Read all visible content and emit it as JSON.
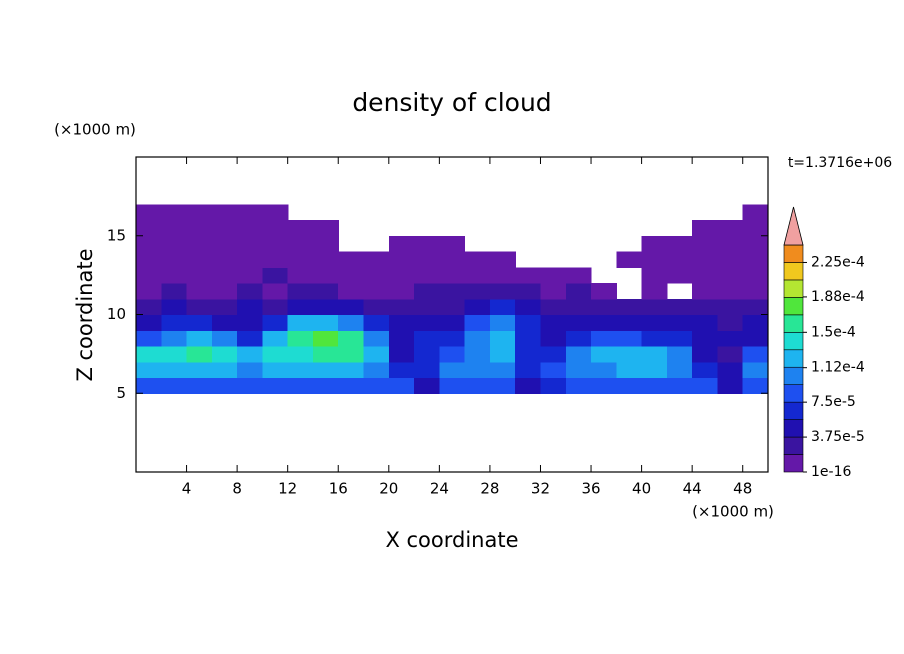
{
  "chart_data": {
    "type": "contour",
    "title": "density of cloud",
    "x_label": "X coordinate",
    "y_label": "Z coordinate",
    "x_unit": "(×1000 m)",
    "y_unit": "(×1000 m)",
    "time_label": "t=1.3716e+06",
    "xlim": [
      0,
      50
    ],
    "xticks": [
      4,
      8,
      12,
      16,
      20,
      24,
      28,
      32,
      36,
      40,
      44,
      48
    ],
    "ylim": [
      0,
      20
    ],
    "yticks": [
      5,
      10,
      15
    ],
    "x": [
      1,
      3,
      5,
      7,
      9,
      11,
      13,
      15,
      17,
      19,
      21,
      23,
      25,
      27,
      29,
      31,
      33,
      35,
      37,
      39,
      41,
      43,
      45,
      47,
      49
    ],
    "y": [
      5.5,
      6.5,
      7.5,
      8.5,
      9.5,
      10.5,
      11.5,
      12.5,
      13.5,
      14.5,
      15.5,
      16.5
    ],
    "z": [
      [
        8e-05,
        9e-05,
        9e-05,
        9e-05,
        9e-05,
        9e-05,
        9e-05,
        9e-05,
        9e-05,
        9e-05,
        8e-05,
        4.5e-05,
        8e-05,
        9e-05,
        8e-05,
        4.5e-05,
        6e-05,
        8e-05,
        8e-05,
        8e-05,
        8e-05,
        8e-05,
        8e-05,
        4.5e-05,
        8e-05
      ],
      [
        0.00012,
        0.00012,
        0.00012,
        0.00012,
        0.00011,
        0.00012,
        0.00012,
        0.00012,
        0.00012,
        0.00011,
        6e-05,
        6e-05,
        0.0001,
        0.0001,
        0.0001,
        6e-05,
        8e-05,
        0.0001,
        0.00011,
        0.00012,
        0.00012,
        0.00011,
        6e-05,
        4.5e-05,
        0.0001
      ],
      [
        0.00014,
        0.00015,
        0.00016,
        0.00015,
        0.00013,
        0.00014,
        0.00015,
        0.00016,
        0.00016,
        0.00013,
        4.5e-05,
        6e-05,
        8e-05,
        0.00011,
        0.00012,
        6e-05,
        6e-05,
        0.0001,
        0.00012,
        0.00013,
        0.00012,
        0.0001,
        4.5e-05,
        2.5e-05,
        8e-05
      ],
      [
        8e-05,
        0.00011,
        0.00012,
        0.0001,
        6e-05,
        0.00012,
        0.00016,
        0.00017,
        0.00016,
        0.00011,
        4.5e-05,
        6e-05,
        6e-05,
        0.0001,
        0.00012,
        6e-05,
        4.5e-05,
        6e-05,
        8e-05,
        8e-05,
        6e-05,
        6e-05,
        4.5e-05,
        4.5e-05,
        4.5e-05
      ],
      [
        4.5e-05,
        6e-05,
        6e-05,
        4.5e-05,
        4.5e-05,
        6e-05,
        0.00012,
        0.00013,
        0.0001,
        6e-05,
        4.5e-05,
        4.5e-05,
        4.5e-05,
        8e-05,
        0.0001,
        6e-05,
        4.5e-05,
        4.5e-05,
        4.5e-05,
        4.5e-05,
        4.5e-05,
        4.5e-05,
        4.5e-05,
        2.5e-05,
        4.5e-05
      ],
      [
        2.5e-05,
        4.5e-05,
        2.5e-05,
        2.5e-05,
        4.5e-05,
        2.5e-05,
        4.5e-05,
        4.5e-05,
        4.5e-05,
        2.5e-05,
        2.5e-05,
        2.5e-05,
        2.5e-05,
        4.5e-05,
        6e-05,
        4.5e-05,
        2.5e-05,
        2.5e-05,
        2.5e-05,
        2.5e-05,
        2.5e-05,
        2.5e-05,
        2.5e-05,
        2.5e-05,
        2.5e-05
      ],
      [
        1e-06,
        2.5e-05,
        1e-06,
        1e-06,
        2.5e-05,
        1e-06,
        2.5e-05,
        2.5e-05,
        1e-06,
        1e-06,
        1e-06,
        2.5e-05,
        2.5e-05,
        2.5e-05,
        2.5e-05,
        2.5e-05,
        1e-06,
        2.5e-05,
        1e-06,
        null,
        1e-06,
        null,
        1e-06,
        1e-06,
        1e-06
      ],
      [
        1e-06,
        1e-06,
        1e-06,
        1e-06,
        1e-06,
        2.5e-05,
        1e-06,
        1e-06,
        1e-06,
        1e-06,
        1e-06,
        1e-06,
        1e-06,
        1e-06,
        1e-06,
        1e-06,
        1e-06,
        1e-06,
        null,
        null,
        1e-06,
        1e-06,
        1e-06,
        1e-06,
        1e-06
      ],
      [
        1e-06,
        1e-06,
        1e-06,
        1e-06,
        1e-06,
        1e-06,
        1e-06,
        1e-06,
        1e-06,
        1e-06,
        1e-06,
        1e-06,
        1e-06,
        1e-06,
        1e-06,
        null,
        null,
        null,
        null,
        1e-06,
        1e-06,
        1e-06,
        1e-06,
        1e-06,
        1e-06
      ],
      [
        1e-06,
        1e-06,
        1e-06,
        1e-06,
        1e-06,
        1e-06,
        1e-06,
        1e-06,
        null,
        null,
        1e-06,
        1e-06,
        1e-06,
        null,
        null,
        null,
        null,
        null,
        null,
        null,
        1e-06,
        1e-06,
        1e-06,
        1e-06,
        1e-06
      ],
      [
        1e-06,
        1e-06,
        1e-06,
        1e-06,
        1e-06,
        1e-06,
        1e-06,
        1e-06,
        null,
        null,
        null,
        null,
        null,
        null,
        null,
        null,
        null,
        null,
        null,
        null,
        null,
        null,
        1e-06,
        1e-06,
        1e-06
      ],
      [
        1e-06,
        1e-06,
        1e-06,
        1e-06,
        1e-06,
        1e-06,
        null,
        null,
        null,
        null,
        null,
        null,
        null,
        null,
        null,
        null,
        null,
        null,
        null,
        null,
        null,
        null,
        null,
        null,
        1e-06
      ]
    ],
    "colorbar": {
      "clim": [
        1e-16,
        0.00024375
      ],
      "colors": [
        "#6418a8",
        "#3a14a0",
        "#2010b0",
        "#1428d0",
        "#1e50f0",
        "#1e82f0",
        "#1eb4f0",
        "#1edcd2",
        "#28e696",
        "#50e63c",
        "#b4e632",
        "#f0c81e",
        "#f08c1e"
      ],
      "extend_color": "#f0a0a0",
      "ticks": [
        {
          "value": 1e-16,
          "label": "1e-16"
        },
        {
          "value": 3.75e-05,
          "label": "3.75e-5"
        },
        {
          "value": 7.5e-05,
          "label": "7.5e-5"
        },
        {
          "value": 0.000112,
          "label": "1.12e-4"
        },
        {
          "value": 0.00015,
          "label": "1.5e-4"
        },
        {
          "value": 0.000188,
          "label": "1.88e-4"
        },
        {
          "value": 0.000225,
          "label": "2.25e-4"
        }
      ]
    }
  }
}
